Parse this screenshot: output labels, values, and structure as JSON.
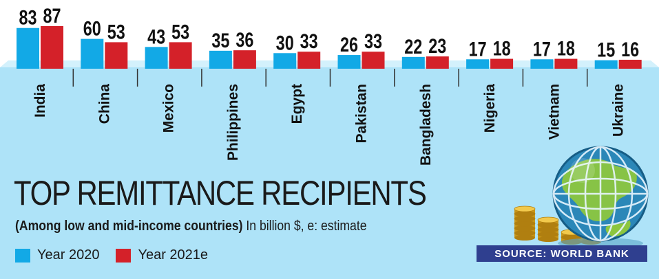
{
  "chart_data": {
    "type": "bar",
    "title": "TOP REMITTANCE RECIPIENTS",
    "subtitle_bold": "(Among low and mid-income countries)",
    "subtitle_rest": " In billion $, e: estimate",
    "categories": [
      "India",
      "China",
      "Mexico",
      "Philippines",
      "Egypt",
      "Pakistan",
      "Bangladesh",
      "Nigeria",
      "Vietnam",
      "Ukraine"
    ],
    "series": [
      {
        "name": "Year 2020",
        "color": "#12a9e6",
        "values": [
          83,
          60,
          43,
          35,
          30,
          26,
          22,
          17,
          17,
          15
        ]
      },
      {
        "name": "Year 2021e",
        "color": "#d42129",
        "values": [
          87,
          53,
          53,
          36,
          33,
          33,
          23,
          18,
          18,
          16
        ]
      }
    ],
    "ylim": [
      0,
      90
    ],
    "grid": false,
    "legend_position": "bottom-left",
    "source": "SOURCE: WORLD BANK"
  },
  "colors": {
    "panel": "#aee3f8",
    "ledge": "#d3f1fc",
    "divider": "#333333",
    "source_bg": "#2f3f8f"
  },
  "decor": {
    "globe": "globe-icon",
    "coins": "gold-coin-stacks-icon"
  }
}
